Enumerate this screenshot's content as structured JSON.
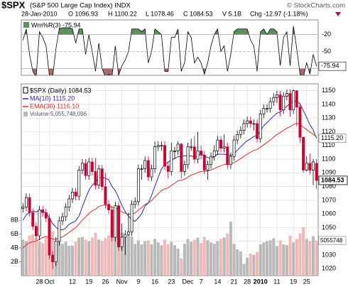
{
  "header": {
    "symbol": "$SPX",
    "name": "(S&P 500 Large Cap Index) INDX",
    "credit": "© StockCharts.com",
    "date": "28-Jan-2010",
    "quote": [
      "O 1096.93",
      "H 1100.22",
      "L 1078.46",
      "C 1084.53",
      "V 5.1B",
      "Chg -12.97 (-1.18%)"
    ]
  },
  "chart_data": [
    {
      "type": "line",
      "title": "Wm%R(3) -75.94",
      "color": "#000000",
      "value_label": "-75.94",
      "ylim": [
        -92,
        6
      ],
      "yticks": [
        -20,
        -50,
        -80
      ],
      "grid": true,
      "fill_above": -20,
      "fill_above_color": "#5f8f5f",
      "fill_below": -80,
      "fill_below_color": "#a86a6a",
      "values": [
        -30,
        -10,
        -55,
        -85,
        -95,
        -15,
        -25,
        -40,
        -92,
        -95,
        -45,
        -10,
        -8,
        -8,
        -8,
        -10,
        -35,
        -10,
        -10,
        -55,
        -20,
        -50,
        -85,
        -35,
        -80,
        -95,
        -90,
        -95,
        -40,
        -92,
        -75,
        -65,
        -50,
        -10,
        -10,
        -10,
        -15,
        -10,
        -70,
        -50,
        -10,
        -15,
        -20,
        -85,
        -85,
        -25,
        -25,
        -10,
        -85,
        -70,
        -15,
        -25,
        -70,
        -60,
        -70,
        -90,
        -70,
        -40,
        -20,
        -10,
        -50,
        -40,
        -85,
        -55,
        -15,
        -10,
        -10,
        -10,
        -10,
        -30,
        -40,
        -85,
        -15,
        -10,
        -20,
        -10,
        -10,
        -15,
        -75,
        -25,
        -15,
        -75,
        -5,
        -45,
        -90,
        -95,
        -70,
        -90,
        -55,
        -75.94
      ]
    },
    {
      "type": "candlestick",
      "title": "$SPX (Daily) 1084.53",
      "close_label": "1084.53",
      "up_color": "#000000",
      "down_color": "#cc0033",
      "grid": true,
      "ylim": [
        1015,
        1155
      ],
      "yticks": [
        1020,
        1030,
        1040,
        1050,
        1060,
        1070,
        1080,
        1090,
        1100,
        1110,
        1120,
        1130,
        1140,
        1150
      ],
      "categories": [
        null,
        null,
        null,
        null,
        null,
        "28",
        null,
        null,
        "Oct",
        null,
        null,
        null,
        null,
        null,
        null,
        "12",
        null,
        null,
        null,
        null,
        "19",
        null,
        null,
        null,
        null,
        "26",
        null,
        null,
        null,
        null,
        "Nov",
        null,
        null,
        null,
        null,
        "9",
        null,
        null,
        null,
        null,
        "16",
        null,
        null,
        null,
        null,
        "23",
        null,
        null,
        null,
        null,
        "Dec",
        null,
        null,
        null,
        "7",
        null,
        null,
        null,
        null,
        "14",
        null,
        null,
        null,
        null,
        "21",
        null,
        null,
        null,
        "28",
        null,
        null,
        null,
        "2010",
        null,
        null,
        null,
        null,
        "11",
        null,
        null,
        null,
        null,
        "19",
        null,
        null,
        null,
        "25",
        null,
        null,
        null
      ],
      "open": [
        1064,
        1065,
        1072,
        1061,
        1051,
        1044,
        1063,
        1061,
        1057,
        1030,
        1025,
        1040,
        1055,
        1058,
        1065,
        1071,
        1076,
        1073,
        1092,
        1097,
        1088,
        1098,
        1091,
        1081,
        1093,
        1080,
        1067,
        1063,
        1043,
        1066,
        1036,
        1043,
        1045,
        1047,
        1067,
        1069,
        1093,
        1093,
        1099,
        1087,
        1093,
        1109,
        1110,
        1110,
        1095,
        1091,
        1106,
        1106,
        1111,
        1091,
        1096,
        1109,
        1109,
        1100,
        1106,
        1103,
        1092,
        1096,
        1102,
        1106,
        1114,
        1108,
        1109,
        1096,
        1102,
        1114,
        1118,
        1121,
        1126,
        1128,
        1126,
        1126,
        1115,
        1133,
        1137,
        1137,
        1142,
        1145,
        1147,
        1136,
        1146,
        1148,
        1136,
        1150,
        1138,
        1116,
        1092,
        1097,
        1092,
        1096.93
      ],
      "high": [
        1068,
        1075,
        1075,
        1064,
        1054,
        1066,
        1066,
        1064,
        1060,
        1033,
        1043,
        1058,
        1061,
        1068,
        1074,
        1079,
        1079,
        1095,
        1100,
        1100,
        1101,
        1101,
        1101,
        1096,
        1096,
        1090,
        1070,
        1066,
        1069,
        1069,
        1053,
        1048,
        1061,
        1070,
        1072,
        1096,
        1096,
        1102,
        1102,
        1096,
        1113,
        1113,
        1113,
        1113,
        1098,
        1112,
        1109,
        1113,
        1112,
        1099,
        1112,
        1115,
        1117,
        1120,
        1110,
        1106,
        1099,
        1105,
        1110,
        1117,
        1117,
        1118,
        1112,
        1105,
        1117,
        1121,
        1124,
        1129,
        1131,
        1131,
        1129,
        1129,
        1136,
        1140,
        1140,
        1145,
        1148,
        1150,
        1150,
        1149,
        1151,
        1151,
        1151,
        1150,
        1141,
        1116,
        1102,
        1104,
        1100,
        1100.22
      ],
      "low": [
        1061,
        1062,
        1058,
        1048,
        1041,
        1041,
        1058,
        1054,
        1027,
        1020,
        1022,
        1037,
        1052,
        1055,
        1062,
        1068,
        1070,
        1070,
        1089,
        1085,
        1085,
        1088,
        1078,
        1078,
        1077,
        1064,
        1060,
        1040,
        1040,
        1033,
        1033,
        1030,
        1044,
        1044,
        1064,
        1066,
        1085,
        1090,
        1084,
        1084,
        1090,
        1106,
        1106,
        1092,
        1086,
        1088,
        1100,
        1103,
        1086,
        1088,
        1093,
        1106,
        1097,
        1097,
        1100,
        1089,
        1085,
        1093,
        1099,
        1103,
        1105,
        1105,
        1093,
        1093,
        1099,
        1111,
        1115,
        1118,
        1123,
        1123,
        1121,
        1112,
        1112,
        1130,
        1134,
        1134,
        1139,
        1141,
        1131,
        1133,
        1143,
        1131,
        1133,
        1124,
        1112,
        1090,
        1091,
        1089,
        1081,
        1078.46
      ],
      "close": [
        1065,
        1072,
        1061,
        1051,
        1044,
        1063,
        1061,
        1057,
        1030,
        1025,
        1040,
        1055,
        1058,
        1065,
        1071,
        1076,
        1073,
        1092,
        1097,
        1088,
        1098,
        1091,
        1081,
        1093,
        1080,
        1067,
        1063,
        1043,
        1066,
        1036,
        1043,
        1045,
        1047,
        1067,
        1069,
        1093,
        1093,
        1099,
        1087,
        1093,
        1109,
        1110,
        1110,
        1095,
        1091,
        1106,
        1106,
        1111,
        1091,
        1096,
        1109,
        1109,
        1100,
        1106,
        1103,
        1092,
        1096,
        1102,
        1106,
        1114,
        1108,
        1109,
        1096,
        1102,
        1114,
        1118,
        1121,
        1126,
        1128,
        1126,
        1126,
        1115,
        1133,
        1137,
        1137,
        1142,
        1145,
        1147,
        1136,
        1146,
        1148,
        1136,
        1150,
        1138,
        1116,
        1092,
        1097,
        1092,
        1098,
        1084.53
      ],
      "series": [
        {
          "name": "MA(10) 1115.20",
          "color": "#2b2ba6",
          "value_label": "1115.20",
          "values": [
            1055.5,
            1059.4,
            1061.1,
            1062.0,
            1061.5,
            1062.6,
            1061.8,
            1060.7,
            1057.2,
            1052.9,
            1050.4,
            1048.7,
            1048.4,
            1049.8,
            1052.5,
            1053.8,
            1055.0,
            1058.5,
            1065.2,
            1071.5,
            1077.3,
            1080.9,
            1083.2,
            1086.0,
            1086.9,
            1086.0,
            1085.0,
            1080.1,
            1077.0,
            1071.8,
            1066.3,
            1061.7,
            1058.3,
            1055.7,
            1054.6,
            1057.2,
            1060.2,
            1065.8,
            1067.9,
            1073.6,
            1080.2,
            1086.7,
            1093.0,
            1095.8,
            1098.0,
            1099.3,
            1100.6,
            1101.8,
            1102.2,
            1102.5,
            1102.5,
            1102.4,
            1101.4,
            1102.5,
            1103.7,
            1102.3,
            1101.3,
            1100.4,
            1101.9,
            1103.7,
            1103.6,
            1103.6,
            1103.2,
            1102.8,
            1103.9,
            1106.5,
            1109.0,
            1111.4,
            1113.6,
            1114.8,
            1116.6,
            1117.2,
            1120.9,
            1124.4,
            1126.7,
            1129.1,
            1131.5,
            1133.6,
            1134.4,
            1136.4,
            1138.6,
            1140.7,
            1142.4,
            1142.5,
            1140.4,
            1135.4,
            1130.6,
            1125.1,
            1121.3,
            1115.2
          ]
        },
        {
          "name": "EMA(30) 1116.10",
          "color": "#e0302a",
          "values": [
            1035.1,
            1037.5,
            1039.0,
            1039.8,
            1040.1,
            1041.5,
            1042.8,
            1043.7,
            1042.8,
            1041.7,
            1041.6,
            1042.4,
            1043.4,
            1044.8,
            1046.5,
            1048.4,
            1050.0,
            1052.7,
            1055.6,
            1057.7,
            1060.3,
            1062.3,
            1063.5,
            1065.4,
            1066.3,
            1066.4,
            1066.1,
            1064.7,
            1064.7,
            1062.9,
            1061.6,
            1060.5,
            1059.7,
            1060.1,
            1060.7,
            1062.8,
            1064.7,
            1066.9,
            1068.2,
            1069.8,
            1072.4,
            1074.8,
            1077.1,
            1078.2,
            1079.0,
            1080.8,
            1082.4,
            1084.2,
            1084.7,
            1085.4,
            1086.9,
            1088.4,
            1089.1,
            1090.2,
            1091.0,
            1091.1,
            1091.4,
            1092.1,
            1093.0,
            1094.3,
            1095.2,
            1096.1,
            1096.1,
            1096.5,
            1097.6,
            1098.9,
            1100.4,
            1102.0,
            1103.7,
            1105.1,
            1106.5,
            1107.0,
            1108.7,
            1110.5,
            1112.2,
            1114.1,
            1116.1,
            1118.1,
            1119.3,
            1121.0,
            1122.7,
            1123.6,
            1125.3,
            1126.1,
            1125.5,
            1123.3,
            1121.6,
            1119.7,
            1118.3,
            1116.1
          ]
        }
      ],
      "volume": {
        "name": "Volume 5,055,748,096",
        "value_label": "5055748",
        "up_color": "#b9b9b9",
        "down_color": "#f2b8b8",
        "values": [
          5.2,
          5.0,
          5.8,
          6.0,
          5.4,
          4.9,
          4.7,
          5.6,
          7.0,
          6.4,
          5.0,
          5.4,
          4.6,
          4.9,
          4.3,
          4.3,
          4.9,
          5.5,
          5.6,
          5.2,
          5.0,
          5.5,
          6.2,
          5.2,
          5.0,
          5.4,
          5.8,
          6.6,
          6.1,
          6.5,
          6.2,
          5.5,
          5.8,
          5.6,
          4.6,
          5.1,
          4.5,
          5.0,
          5.1,
          4.5,
          5.3,
          4.8,
          4.4,
          5.2,
          4.5,
          4.9,
          4.4,
          3.9,
          2.5,
          4.6,
          5.3,
          4.9,
          5.2,
          5.5,
          4.7,
          5.6,
          5.1,
          4.8,
          4.6,
          5.0,
          5.3,
          5.5,
          6.1,
          7.8,
          4.6,
          3.8,
          3.5,
          1.7,
          2.6,
          3.2,
          3.0,
          3.4,
          4.5,
          4.8,
          5.0,
          5.1,
          5.4,
          4.3,
          5.1,
          4.5,
          4.4,
          5.8,
          4.8,
          5.3,
          6.1,
          7.0,
          5.3,
          5.0,
          5.7,
          5.06
        ]
      },
      "y2lim": [
        0,
        27.7
      ],
      "y2ticks": [
        {
          "value": 2,
          "label": "2B"
        },
        {
          "value": 4,
          "label": "4B"
        },
        {
          "value": 6,
          "label": "6B"
        },
        {
          "value": 8,
          "label": "8B"
        }
      ]
    }
  ]
}
